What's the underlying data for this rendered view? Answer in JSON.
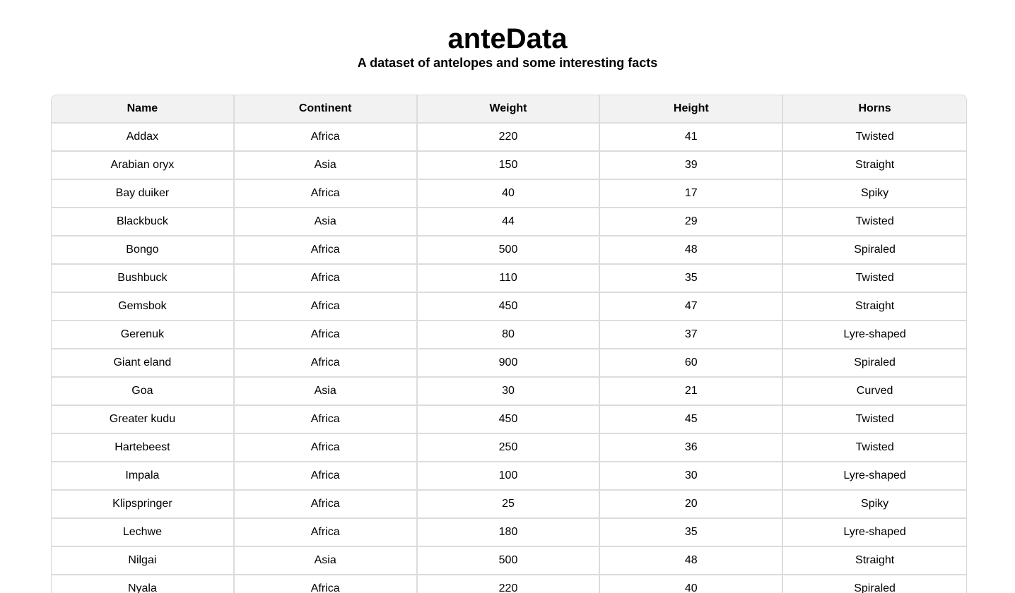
{
  "header": {
    "title": "anteData",
    "subtitle": "A dataset of antelopes and some interesting facts"
  },
  "table": {
    "columns": [
      "Name",
      "Continent",
      "Weight",
      "Height",
      "Horns"
    ],
    "rows": [
      [
        "Addax",
        "Africa",
        "220",
        "41",
        "Twisted"
      ],
      [
        "Arabian oryx",
        "Asia",
        "150",
        "39",
        "Straight"
      ],
      [
        "Bay duiker",
        "Africa",
        "40",
        "17",
        "Spiky"
      ],
      [
        "Blackbuck",
        "Asia",
        "44",
        "29",
        "Twisted"
      ],
      [
        "Bongo",
        "Africa",
        "500",
        "48",
        "Spiraled"
      ],
      [
        "Bushbuck",
        "Africa",
        "110",
        "35",
        "Twisted"
      ],
      [
        "Gemsbok",
        "Africa",
        "450",
        "47",
        "Straight"
      ],
      [
        "Gerenuk",
        "Africa",
        "80",
        "37",
        "Lyre-shaped"
      ],
      [
        "Giant eland",
        "Africa",
        "900",
        "60",
        "Spiraled"
      ],
      [
        "Goa",
        "Asia",
        "30",
        "21",
        "Curved"
      ],
      [
        "Greater kudu",
        "Africa",
        "450",
        "45",
        "Twisted"
      ],
      [
        "Hartebeest",
        "Africa",
        "250",
        "36",
        "Twisted"
      ],
      [
        "Impala",
        "Africa",
        "100",
        "30",
        "Lyre-shaped"
      ],
      [
        "Klipspringer",
        "Africa",
        "25",
        "20",
        "Spiky"
      ],
      [
        "Lechwe",
        "Africa",
        "180",
        "35",
        "Lyre-shaped"
      ],
      [
        "Nilgai",
        "Asia",
        "500",
        "48",
        "Straight"
      ],
      [
        "Nyala",
        "Africa",
        "220",
        "40",
        "Spiraled"
      ]
    ]
  }
}
